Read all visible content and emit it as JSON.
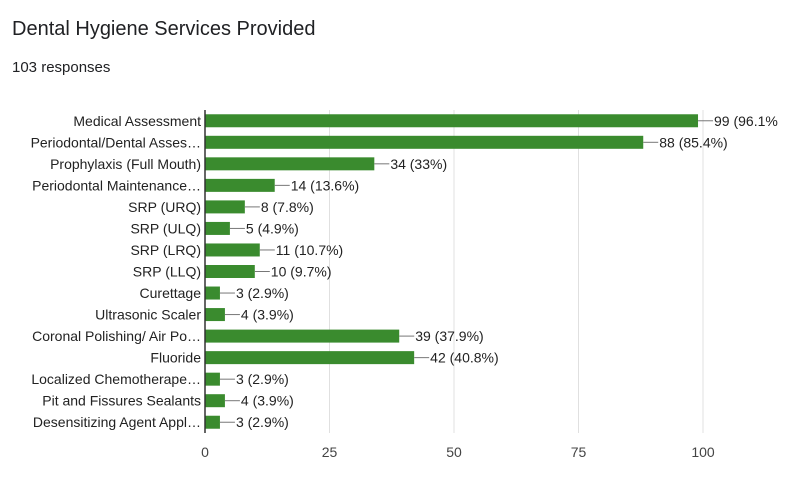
{
  "header": {
    "title": "Dental Hygiene Services Provided",
    "responses": "103 responses"
  },
  "colors": {
    "bar": "#3a8b2e",
    "grid": "#e0e0e0",
    "axis": "#333333"
  },
  "chart_data": {
    "type": "bar",
    "orientation": "horizontal",
    "title": "Dental Hygiene Services Provided",
    "xlabel": "",
    "ylabel": "",
    "xlim": [
      0,
      100
    ],
    "ticks": [
      0,
      25,
      50,
      75,
      100
    ],
    "categories": [
      "Medical Assessment",
      "Periodontal/Dental Asses…",
      "Prophylaxis (Full Mouth)",
      "Periodontal Maintenance…",
      "SRP (URQ)",
      "SRP (ULQ)",
      "SRP (LRQ)",
      "SRP (LLQ)",
      "Curettage",
      "Ultrasonic Scaler",
      "Coronal Polishing/ Air Po…",
      "Fluoride",
      "Localized Chemotherape…",
      "Pit and Fissures Sealants",
      "Desensitizing Agent Appl…"
    ],
    "values": [
      99,
      88,
      34,
      14,
      8,
      5,
      11,
      10,
      3,
      4,
      39,
      42,
      3,
      4,
      3
    ],
    "labels": [
      "99 (96.1%",
      "88 (85.4%)",
      "34 (33%)",
      "14 (13.6%)",
      "8 (7.8%)",
      "5 (4.9%)",
      "11 (10.7%)",
      "10 (9.7%)",
      "3 (2.9%)",
      "4 (3.9%)",
      "39 (37.9%)",
      "42 (40.8%)",
      "3 (2.9%)",
      "4 (3.9%)",
      "3 (2.9%)"
    ],
    "grid": true,
    "legend": "none"
  }
}
